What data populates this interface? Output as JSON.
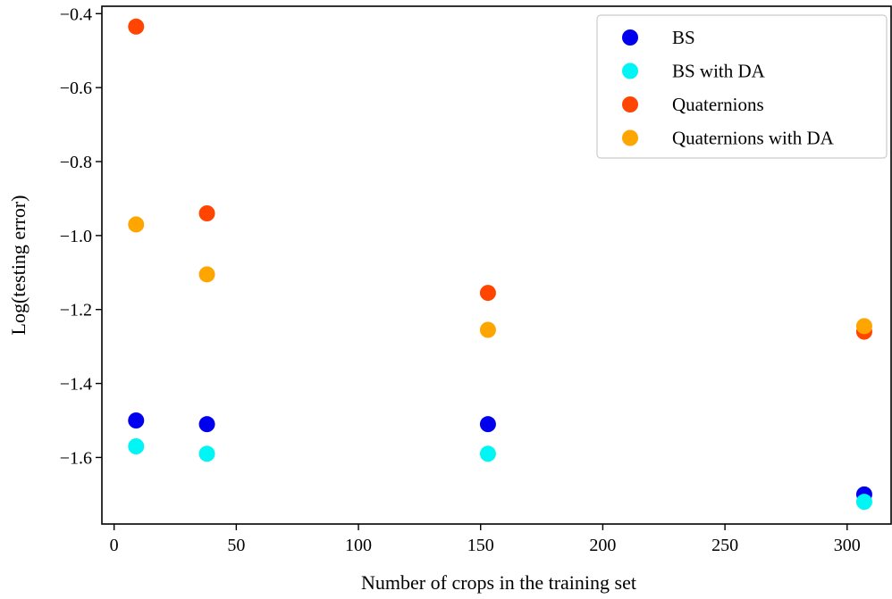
{
  "chart_data": {
    "type": "scatter",
    "title": "",
    "xlabel": "Number of crops in the training set",
    "ylabel": "Log(testing error)",
    "xlim": [
      -5,
      318
    ],
    "ylim": [
      -1.78,
      -0.38
    ],
    "xticks": [
      0,
      50,
      100,
      150,
      200,
      250,
      300
    ],
    "yticks": [
      -0.4,
      -0.6,
      -0.8,
      -1.0,
      -1.2,
      -1.4,
      -1.6
    ],
    "xtick_labels": [
      "0",
      "50",
      "100",
      "150",
      "200",
      "250",
      "300"
    ],
    "ytick_labels": [
      "−0.4",
      "−0.6",
      "−0.8",
      "−1.0",
      "−1.2",
      "−1.4",
      "−1.6"
    ],
    "grid": false,
    "legend_position": "top-right",
    "x": [
      9,
      38,
      153,
      307
    ],
    "series": [
      {
        "name": "BS",
        "color": "#0000ee",
        "values": [
          -1.5,
          -1.51,
          -1.51,
          -1.7
        ]
      },
      {
        "name": "BS with DA",
        "color": "#00f5f5",
        "values": [
          -1.57,
          -1.59,
          -1.59,
          -1.72
        ]
      },
      {
        "name": "Quaternions",
        "color": "#ff4500",
        "values": [
          -0.435,
          -0.94,
          -1.155,
          -1.26
        ]
      },
      {
        "name": "Quaternions with DA",
        "color": "#ffa500",
        "values": [
          -0.97,
          -1.105,
          -1.255,
          -1.245
        ]
      }
    ]
  }
}
